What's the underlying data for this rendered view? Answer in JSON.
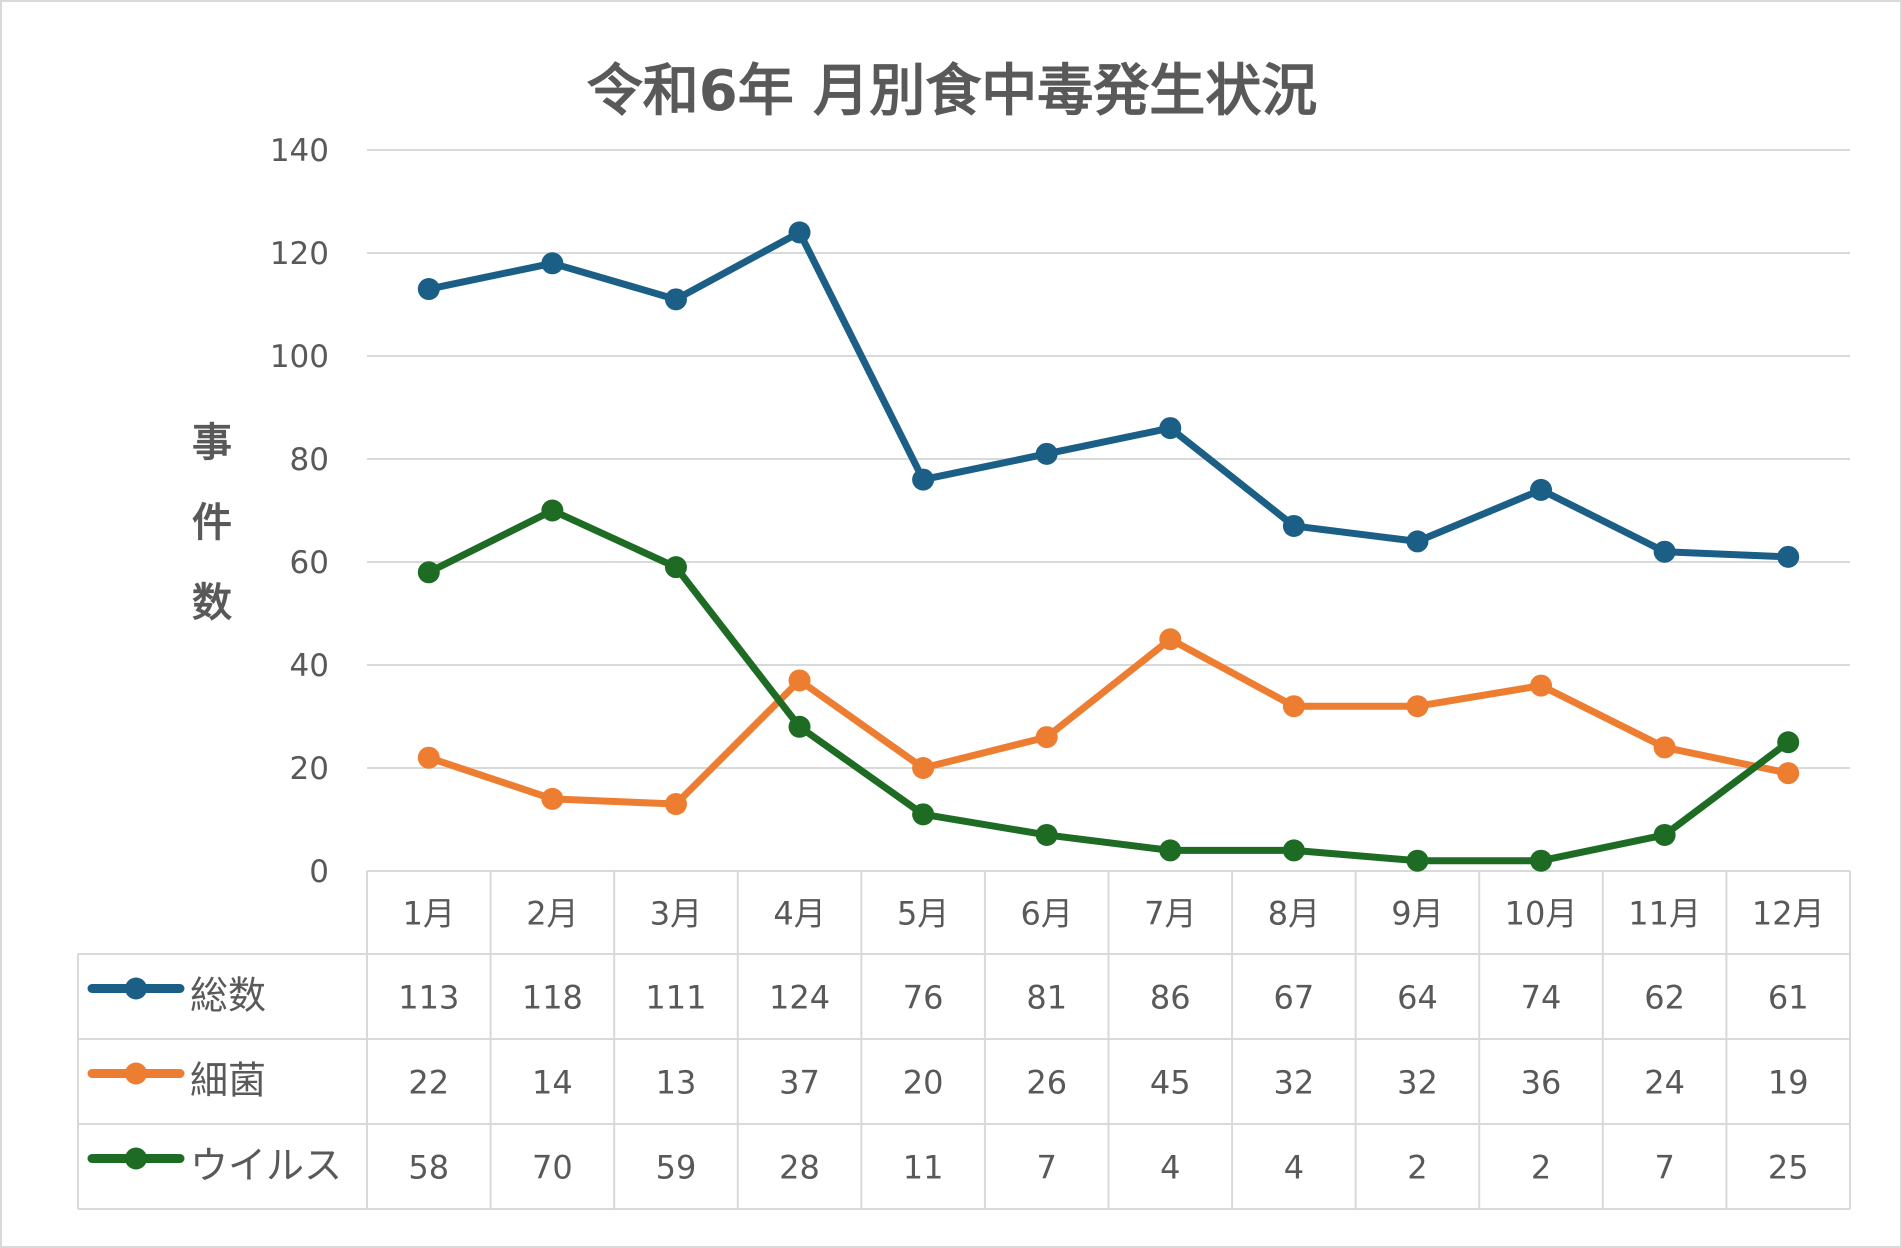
{
  "chart_data": {
    "type": "line",
    "title": "令和6年 月別食中毒発生状況",
    "ylabel": "事件数",
    "xlabel": "",
    "categories": [
      "1月",
      "2月",
      "3月",
      "4月",
      "5月",
      "6月",
      "7月",
      "8月",
      "9月",
      "10月",
      "11月",
      "12月"
    ],
    "ylim": [
      0,
      140
    ],
    "yticks": [
      0,
      20,
      40,
      60,
      80,
      100,
      120,
      140
    ],
    "grid": true,
    "legend": "data-table",
    "series": [
      {
        "name": "総数",
        "color": "#1b5f86",
        "values": [
          113,
          118,
          111,
          124,
          76,
          81,
          86,
          67,
          64,
          74,
          62,
          61
        ]
      },
      {
        "name": "細菌",
        "color": "#ed7d31",
        "values": [
          22,
          14,
          13,
          37,
          20,
          26,
          45,
          32,
          32,
          36,
          24,
          19
        ]
      },
      {
        "name": "ウイルス",
        "color": "#1e6b24",
        "values": [
          58,
          70,
          59,
          28,
          11,
          7,
          4,
          4,
          2,
          2,
          7,
          25
        ]
      }
    ]
  }
}
